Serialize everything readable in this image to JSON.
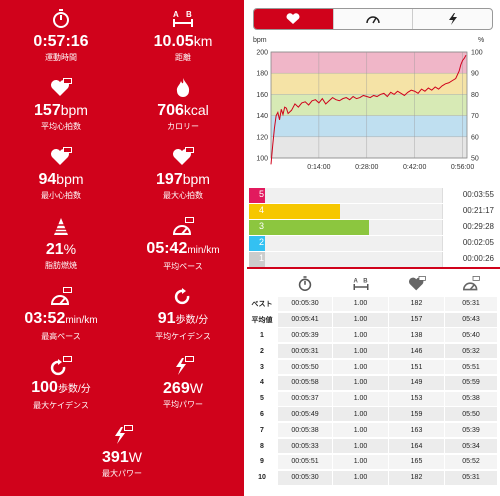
{
  "left_stats": [
    {
      "icon": "stopwatch-icon",
      "value": "0:57:16",
      "unit": "",
      "label": "運動時間"
    },
    {
      "icon": "distance-ab-icon",
      "value": "10.05",
      "unit": "km",
      "label": "距離"
    },
    {
      "icon": "heart-avg-icon",
      "value": "157",
      "unit": "bpm",
      "label": "平均心拍数"
    },
    {
      "icon": "calorie-flame-icon",
      "value": "706",
      "unit": "kcal",
      "label": "カロリー"
    },
    {
      "icon": "heart-min-icon",
      "value": "94",
      "unit": "bpm",
      "label": "最小心拍数"
    },
    {
      "icon": "heart-max-icon",
      "value": "197",
      "unit": "bpm",
      "label": "最大心拍数"
    },
    {
      "icon": "fat-burn-icon",
      "value": "21",
      "unit": "%",
      "label": "脂肪燃焼"
    },
    {
      "icon": "pace-avg-icon",
      "value": "05:42",
      "unit": "min/km",
      "label": "平均ペース"
    },
    {
      "icon": "pace-max-icon",
      "value": "03:52",
      "unit": "min/km",
      "label": "最高ペース"
    },
    {
      "icon": "cadence-avg-icon",
      "value": "91",
      "unit": "歩数/分",
      "label": "平均ケイデンス"
    },
    {
      "icon": "cadence-max-icon",
      "value": "100",
      "unit": "歩数/分",
      "label": "最大ケイデンス"
    },
    {
      "icon": "power-avg-icon",
      "value": "269",
      "unit": "W",
      "label": "平均パワー"
    },
    {
      "icon": "power-max-icon",
      "value": "391",
      "unit": "W",
      "label": "最大パワー"
    }
  ],
  "tabs": [
    {
      "icon": "heart-icon",
      "active": true
    },
    {
      "icon": "gauge-icon",
      "active": false
    },
    {
      "icon": "lightning-icon",
      "active": false
    }
  ],
  "chart_data": {
    "type": "line",
    "ylabel_left": "bpm",
    "ylabel_right": "%",
    "ylim": [
      100,
      200
    ],
    "yticks_left": [
      "100",
      "120",
      "140",
      "160",
      "180",
      "200"
    ],
    "yticks_right": [
      "50",
      "60",
      "70",
      "80",
      "90",
      "100"
    ],
    "xlim": [
      0,
      57.3
    ],
    "xticks": [
      {
        "x": 14,
        "label": "0:14:00"
      },
      {
        "x": 28,
        "label": "0:28:00"
      },
      {
        "x": 42,
        "label": "0:42:00"
      },
      {
        "x": 56,
        "label": "0:56:00"
      }
    ],
    "zone_bands": [
      {
        "from": 180,
        "to": 200,
        "color": "#f0b6c8"
      },
      {
        "from": 160,
        "to": 180,
        "color": "#f5e3a6"
      },
      {
        "from": 140,
        "to": 160,
        "color": "#d7eab5"
      },
      {
        "from": 120,
        "to": 140,
        "color": "#bfdff0"
      },
      {
        "from": 100,
        "to": 120,
        "color": "#e6e6e6"
      }
    ],
    "series": [
      {
        "color": "#d0021b",
        "x": [
          0,
          0.5,
          1,
          1.5,
          2,
          2.5,
          3,
          3.5,
          4,
          4.5,
          5,
          6,
          7,
          8,
          9,
          10,
          11,
          12,
          13,
          14,
          15,
          16,
          17,
          18,
          19,
          20,
          21,
          22,
          23,
          24,
          25,
          26,
          27,
          28,
          29,
          30,
          31,
          32,
          33,
          34,
          35,
          36,
          37,
          38,
          39,
          40,
          41,
          42,
          43,
          44,
          45,
          46,
          47,
          48,
          49,
          50,
          51,
          52,
          53,
          54,
          55,
          55.5,
          56,
          56.5,
          57
        ],
        "values": [
          94,
          112,
          128,
          140,
          143,
          136,
          146,
          141,
          148,
          147,
          142,
          145,
          151,
          148,
          152,
          153,
          150,
          154,
          155,
          152,
          156,
          151,
          154,
          157,
          155,
          154,
          156,
          157,
          155,
          158,
          156,
          157,
          159,
          158,
          157,
          159,
          158,
          160,
          161,
          158,
          162,
          160,
          163,
          161,
          159,
          162,
          164,
          163,
          161,
          165,
          163,
          166,
          164,
          167,
          165,
          168,
          170,
          171,
          173,
          175,
          182,
          188,
          192,
          194,
          197
        ]
      }
    ]
  },
  "zones": [
    {
      "num": "5",
      "time": "00:03:55",
      "color": "#e21a5e",
      "fraction": 0.08
    },
    {
      "num": "4",
      "time": "00:21:17",
      "color": "#f6c700",
      "fraction": 0.47
    },
    {
      "num": "3",
      "time": "00:29:28",
      "color": "#8cc63f",
      "fraction": 0.62
    },
    {
      "num": "2",
      "time": "00:02:05",
      "color": "#33c1f2",
      "fraction": 0.05
    },
    {
      "num": "1",
      "time": "00:00:26",
      "color": "#cccccc",
      "fraction": 0.0
    }
  ],
  "lap_table": {
    "header_icons": [
      "",
      "stopwatch-icon",
      "distance-ab-icon",
      "heart-avg-icon",
      "pace-avg-icon"
    ],
    "rows": [
      [
        "ベスト",
        "00:05:30",
        "1.00",
        "182",
        "05:31"
      ],
      [
        "平均値",
        "00:05:41",
        "1.00",
        "157",
        "05:43"
      ],
      [
        "1",
        "00:05:39",
        "1.00",
        "138",
        "05:40"
      ],
      [
        "2",
        "00:05:31",
        "1.00",
        "146",
        "05:32"
      ],
      [
        "3",
        "00:05:50",
        "1.00",
        "151",
        "05:51"
      ],
      [
        "4",
        "00:05:58",
        "1.00",
        "149",
        "05:59"
      ],
      [
        "5",
        "00:05:37",
        "1.00",
        "153",
        "05:38"
      ],
      [
        "6",
        "00:05:49",
        "1.00",
        "159",
        "05:50"
      ],
      [
        "7",
        "00:05:38",
        "1.00",
        "163",
        "05:39"
      ],
      [
        "8",
        "00:05:33",
        "1.00",
        "164",
        "05:34"
      ],
      [
        "9",
        "00:05:51",
        "1.00",
        "165",
        "05:52"
      ],
      [
        "10",
        "00:05:30",
        "1.00",
        "182",
        "05:31"
      ]
    ]
  }
}
